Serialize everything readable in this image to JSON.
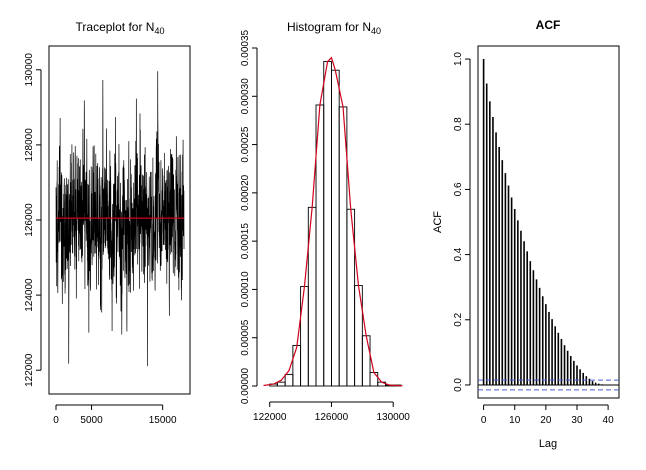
{
  "charts": [
    {
      "type": "line",
      "title": "Traceplot for N",
      "title_sub": "40",
      "xlabel": "",
      "ylabel": "",
      "xlim": [
        0,
        18000
      ],
      "ylim": [
        121500,
        130500
      ],
      "xticks": [
        "0",
        "5000",
        "15000"
      ],
      "xtick_values": [
        0,
        5000,
        15000
      ],
      "yticks": [
        "122000",
        "124000",
        "126000",
        "128000",
        "130000"
      ],
      "ytick_values": [
        122000,
        124000,
        126000,
        128000,
        130000
      ],
      "series_description": "MCMC trace, approx. 18000 iterations fluctuating around 126000 (range approx. 121700 to 130100)",
      "mean_line": 126050,
      "mean_line_color": "#d0021b"
    },
    {
      "type": "bar",
      "title": "Histogram for N",
      "title_sub": "40",
      "xlabel": "",
      "ylabel": "",
      "xlim": [
        121500,
        130700
      ],
      "ylim": [
        0,
        0.00035
      ],
      "xticks": [
        "122000",
        "126000",
        "130000"
      ],
      "xtick_values": [
        122000,
        126000,
        130000
      ],
      "yticks": [
        "0.00000",
        "0.00005",
        "0.00010",
        "0.00015",
        "0.00020",
        "0.00025",
        "0.00030",
        "0.00035"
      ],
      "ytick_values": [
        0,
        5e-05,
        0.0001,
        0.00015,
        0.0002,
        0.00025,
        0.0003,
        0.00035
      ],
      "bin_width": 500,
      "bins": [
        {
          "x0": 122000,
          "density": 2e-06
        },
        {
          "x0": 122500,
          "density": 4e-06
        },
        {
          "x0": 123000,
          "density": 1.2e-05
        },
        {
          "x0": 123500,
          "density": 4.2e-05
        },
        {
          "x0": 124000,
          "density": 0.000103
        },
        {
          "x0": 124500,
          "density": 0.000185
        },
        {
          "x0": 125000,
          "density": 0.000291
        },
        {
          "x0": 125500,
          "density": 0.000336
        },
        {
          "x0": 126000,
          "density": 0.000327
        },
        {
          "x0": 126500,
          "density": 0.000289
        },
        {
          "x0": 127000,
          "density": 0.000183
        },
        {
          "x0": 127500,
          "density": 0.000104
        },
        {
          "x0": 128000,
          "density": 5.2e-05
        },
        {
          "x0": 128500,
          "density": 1.4e-05
        },
        {
          "x0": 129000,
          "density": 4e-06
        },
        {
          "x0": 129500,
          "density": 1e-06
        },
        {
          "x0": 130000,
          "density": 1e-06
        }
      ],
      "density_curve": {
        "color": "#d0021b",
        "x": [
          121600,
          122250,
          122750,
          123250,
          123750,
          124250,
          124750,
          125250,
          125750,
          126000,
          126250,
          126750,
          127250,
          127750,
          128250,
          128750,
          129250,
          129750,
          130200,
          130600
        ],
        "y": [
          5e-07,
          2e-06,
          6e-06,
          1.6e-05,
          4e-05,
          0.000103,
          0.000185,
          0.000291,
          0.000336,
          0.00034,
          0.000327,
          0.000289,
          0.000183,
          0.000104,
          5.2e-05,
          1.4e-05,
          4e-06,
          1e-06,
          5e-07,
          3e-07
        ]
      }
    },
    {
      "type": "bar",
      "title": "ACF",
      "xlabel": "Lag",
      "ylabel": "ACF",
      "xlim": [
        -1.8,
        43.5
      ],
      "ylim": [
        -0.04,
        1.04
      ],
      "xticks": [
        "0",
        "10",
        "20",
        "30",
        "40"
      ],
      "xtick_values": [
        0,
        10,
        20,
        30,
        40
      ],
      "yticks": [
        "0.0",
        "0.2",
        "0.4",
        "0.6",
        "0.8",
        "1.0"
      ],
      "ytick_values": [
        0,
        0.2,
        0.4,
        0.6,
        0.8,
        1.0
      ],
      "lags": [
        0,
        1,
        2,
        3,
        4,
        5,
        6,
        7,
        8,
        9,
        10,
        11,
        12,
        13,
        14,
        15,
        16,
        17,
        18,
        19,
        20,
        21,
        22,
        23,
        24,
        25,
        26,
        27,
        28,
        29,
        30,
        31,
        32,
        33,
        34,
        35,
        36,
        37,
        38,
        39,
        40,
        41,
        42
      ],
      "acf": [
        1.0,
        0.925,
        0.87,
        0.822,
        0.775,
        0.73,
        0.69,
        0.65,
        0.612,
        0.575,
        0.54,
        0.505,
        0.473,
        0.441,
        0.41,
        0.38,
        0.352,
        0.324,
        0.298,
        0.272,
        0.248,
        0.224,
        0.202,
        0.18,
        0.16,
        0.141,
        0.122,
        0.105,
        0.089,
        0.074,
        0.06,
        0.048,
        0.037,
        0.027,
        0.019,
        0.012,
        0.007,
        0.004,
        0.002,
        0.001,
        0.001,
        0.0,
        0.0
      ],
      "conf_bands": [
        0.015,
        -0.015
      ],
      "conf_color": "#4a5dd6"
    }
  ]
}
